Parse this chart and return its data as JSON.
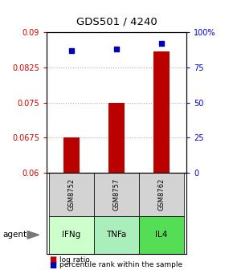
{
  "title": "GDS501 / 4240",
  "categories": [
    "IFNg",
    "TNFa",
    "IL4"
  ],
  "gsm_labels": [
    "GSM8752",
    "GSM8757",
    "GSM8762"
  ],
  "bar_values": [
    0.0675,
    0.075,
    0.086
  ],
  "percentile_values": [
    87,
    88,
    92
  ],
  "ylim_left": [
    0.06,
    0.09
  ],
  "ylim_right": [
    0,
    100
  ],
  "yticks_left": [
    0.06,
    0.0675,
    0.075,
    0.0825,
    0.09
  ],
  "ytick_labels_left": [
    "0.06",
    "0.0675",
    "0.075",
    "0.0825",
    "0.09"
  ],
  "yticks_right": [
    0,
    25,
    50,
    75,
    100
  ],
  "ytick_labels_right": [
    "0",
    "25",
    "50",
    "75",
    "100%"
  ],
  "bar_color": "#bb0000",
  "dot_color": "#0000bb",
  "agent_colors": [
    "#ccffcc",
    "#aaeebb",
    "#55dd55"
  ],
  "gsm_bg": "#d3d3d3",
  "legend_bar_label": "log ratio",
  "legend_dot_label": "percentile rank within the sample",
  "agent_label": "agent",
  "bar_width": 0.35
}
